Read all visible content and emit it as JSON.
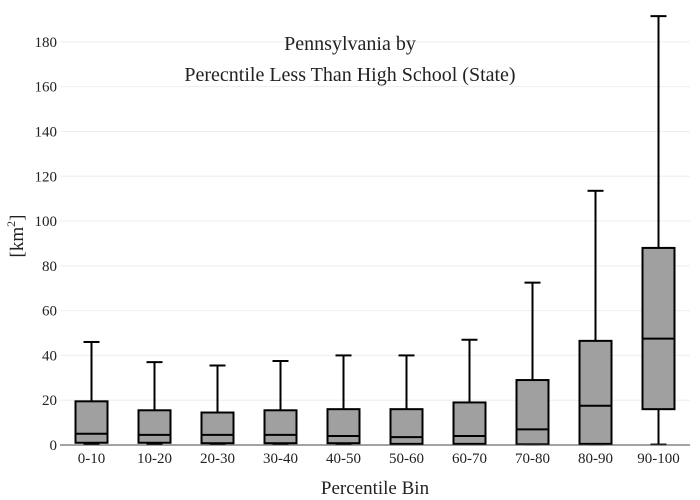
{
  "chart_data": {
    "type": "box",
    "title_line1": "Pennsylvania  by",
    "title_line2": "Perecntile Less Than High School (State)",
    "xlabel": "Percentile Bin",
    "ylabel_main": "[km",
    "ylabel_sup": "2",
    "ylabel_close": "]",
    "ylim": [
      0,
      192
    ],
    "yticks": [
      0,
      20,
      40,
      60,
      80,
      100,
      120,
      140,
      160,
      180
    ],
    "grid": true,
    "box_color": "#a0a0a0",
    "categories": [
      "0-10",
      "10-20",
      "20-30",
      "30-40",
      "40-50",
      "50-60",
      "60-70",
      "70-80",
      "80-90",
      "90-100"
    ],
    "boxes": [
      {
        "min": 0.5,
        "q1": 1.0,
        "median": 5.0,
        "q3": 19.5,
        "max": 46.0
      },
      {
        "min": 0.5,
        "q1": 1.0,
        "median": 4.5,
        "q3": 15.5,
        "max": 37.0
      },
      {
        "min": 0.3,
        "q1": 0.8,
        "median": 4.5,
        "q3": 14.5,
        "max": 35.5
      },
      {
        "min": 0.3,
        "q1": 0.8,
        "median": 4.5,
        "q3": 15.5,
        "max": 37.5
      },
      {
        "min": 0.3,
        "q1": 0.8,
        "median": 4.0,
        "q3": 16.0,
        "max": 40.0
      },
      {
        "min": 0.3,
        "q1": 0.5,
        "median": 3.5,
        "q3": 16.0,
        "max": 40.0
      },
      {
        "min": 0.3,
        "q1": 0.5,
        "median": 4.0,
        "q3": 19.0,
        "max": 47.0
      },
      {
        "min": 0.2,
        "q1": 0.3,
        "median": 7.0,
        "q3": 29.0,
        "max": 72.5
      },
      {
        "min": 0.2,
        "q1": 0.5,
        "median": 17.5,
        "q3": 46.5,
        "max": 113.5
      },
      {
        "min": 0.2,
        "q1": 16.0,
        "median": 47.5,
        "q3": 88.0,
        "max": 191.5
      }
    ]
  }
}
